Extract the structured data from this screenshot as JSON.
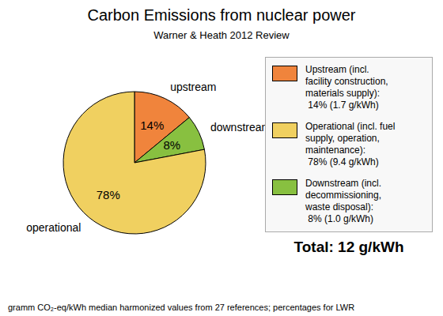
{
  "chart_data": {
    "type": "pie",
    "title": "Carbon Emissions from nuclear power",
    "subtitle": "Warner & Heath 2012 Review",
    "categories": [
      "upstream",
      "downstream",
      "operational"
    ],
    "values": [
      14,
      8,
      78
    ],
    "value_labels": [
      "14%",
      "8%",
      "78%"
    ],
    "colors": [
      "#f0843c",
      "#88c040",
      "#f0d060"
    ],
    "legend": "right",
    "legend_entries": [
      {
        "color": "#f0843c",
        "text": "Upstream (incl.\nfacility construction,\nmaterials supply):\n 14% (1.7 g/kWh)"
      },
      {
        "color": "#f0d060",
        "text": "Operational (incl. fuel\nsupply, operation,\nmaintenance):\n 78% (9.4 g/kWh)"
      },
      {
        "color": "#88c040",
        "text": "Downstream (incl.\ndecommissioning,\nwaste disposal):\n 8% (1.0 g/kWh)"
      }
    ],
    "annotations": [
      "Total: 12 g/kWh"
    ],
    "footnote": "gramm CO₂-eq/kWh median harmonized values from 27 references; percentages for LWR"
  }
}
